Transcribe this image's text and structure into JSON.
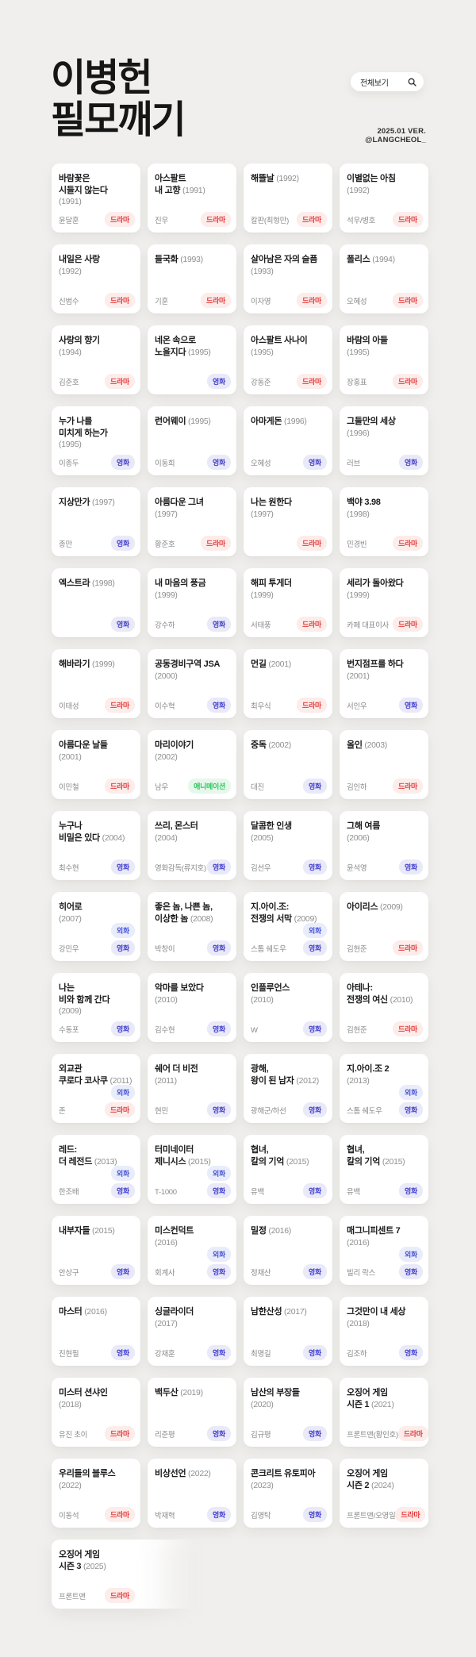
{
  "header": {
    "title": "이병헌\n필모깨기",
    "view_all_label": "전체보기",
    "version_line1": "2025.01 VER.",
    "version_line2": "@LANGCHEOL_"
  },
  "badge_colors": {
    "드라마": {
      "fg": "#E23C3C",
      "bg": "#FCECEA"
    },
    "영화": {
      "fg": "#4340CE",
      "bg": "#E9E9F8"
    },
    "외화": {
      "fg": "#4A57D9",
      "bg": "#E9EDFA"
    },
    "애니메이션": {
      "fg": "#2FC75F",
      "bg": "#E5F8EB"
    }
  },
  "cards": [
    {
      "title": "바람꽃은\n시들지 않는다\n",
      "year": "(1991)",
      "name": "윤달훈",
      "badges": [
        "드라마"
      ]
    },
    {
      "title": "아스팔트\n내 고향",
      "year": "(1991)",
      "name": "진우",
      "badges": [
        "드라마"
      ]
    },
    {
      "title": "해뜰날",
      "year": "(1992)",
      "name": "칼판(최형만)",
      "badges": [
        "드라마"
      ]
    },
    {
      "title": "이별없는 아침\n",
      "year": "(1992)",
      "name": "석우/병호",
      "badges": [
        "드라마"
      ]
    },
    {
      "title": "내일은 사랑\n",
      "year": "(1992)",
      "name": "신범수",
      "badges": [
        "드라마"
      ]
    },
    {
      "title": "들국화",
      "year": "(1993)",
      "name": "기훈",
      "badges": [
        "드라마"
      ]
    },
    {
      "title": "살아남은 자의 슬픔\n",
      "year": "(1993)",
      "name": "이자영",
      "badges": [
        "드라마"
      ]
    },
    {
      "title": "폴리스",
      "year": "(1994)",
      "name": "오혜성",
      "badges": [
        "드라마"
      ]
    },
    {
      "title": "사랑의 향기\n",
      "year": "(1994)",
      "name": "김준호",
      "badges": [
        "드라마"
      ]
    },
    {
      "title": "네온 속으로\n노을지다",
      "year": "(1995)",
      "name": "",
      "badges": [
        "영화"
      ]
    },
    {
      "title": "아스팔트 사나이\n",
      "year": "(1995)",
      "name": "강동준",
      "badges": [
        "드라마"
      ]
    },
    {
      "title": "바람의 아들\n",
      "year": "(1995)",
      "name": "장홍표",
      "badges": [
        "드라마"
      ]
    },
    {
      "title": "누가 나를\n미치게 하는가\n",
      "year": "(1995)",
      "name": "이종두",
      "badges": [
        "영화"
      ]
    },
    {
      "title": "런어웨이",
      "year": "(1995)",
      "name": "이동희",
      "badges": [
        "영화"
      ]
    },
    {
      "title": "아마게돈",
      "year": "(1996)",
      "name": "오혜성",
      "badges": [
        "영화"
      ]
    },
    {
      "title": "그들만의 세상\n",
      "year": "(1996)",
      "name": "러브",
      "badges": [
        "영화"
      ]
    },
    {
      "title": "지상만가",
      "year": "(1997)",
      "name": "종만",
      "badges": [
        "영화"
      ]
    },
    {
      "title": "아름다운 그녀\n",
      "year": "(1997)",
      "name": "황준호",
      "badges": [
        "드라마"
      ]
    },
    {
      "title": "나는 원한다\n",
      "year": "(1997)",
      "name": "",
      "badges": [
        "드라마"
      ]
    },
    {
      "title": "백야 3.98\n",
      "year": "(1998)",
      "name": "민경빈",
      "badges": [
        "드라마"
      ]
    },
    {
      "title": "엑스트라",
      "year": "(1998)",
      "name": "",
      "badges": [
        "영화"
      ]
    },
    {
      "title": "내 마음의 풍금\n",
      "year": "(1999)",
      "name": "강수하",
      "badges": [
        "영화"
      ]
    },
    {
      "title": "해피 투게더\n",
      "year": "(1999)",
      "name": "서태풍",
      "badges": [
        "드라마"
      ]
    },
    {
      "title": "세리가 돌아왔다\n",
      "year": "(1999)",
      "name": "카페 대표이사",
      "badges": [
        "드라마"
      ]
    },
    {
      "title": "해바라기",
      "year": "(1999)",
      "name": "이태성",
      "badges": [
        "드라마"
      ]
    },
    {
      "title": "공동경비구역 JSA\n",
      "year": "(2000)",
      "name": "이수혁",
      "badges": [
        "영화"
      ]
    },
    {
      "title": "먼길",
      "year": "(2001)",
      "name": "최우식",
      "badges": [
        "드라마"
      ]
    },
    {
      "title": "번지점프를 하다\n",
      "year": "(2001)",
      "name": "서인우",
      "badges": [
        "영화"
      ]
    },
    {
      "title": "아름다운 날들\n",
      "year": "(2001)",
      "name": "이민철",
      "badges": [
        "드라마"
      ]
    },
    {
      "title": "마리이야기\n",
      "year": "(2002)",
      "name": "남우",
      "badges": [
        "애니메이션"
      ]
    },
    {
      "title": "중독",
      "year": "(2002)",
      "name": "대진",
      "badges": [
        "영화"
      ]
    },
    {
      "title": "올인",
      "year": "(2003)",
      "name": "김인하",
      "badges": [
        "드라마"
      ]
    },
    {
      "title": "누구나\n비밀은 있다",
      "year": "(2004)",
      "name": "최수현",
      "badges": [
        "영화"
      ]
    },
    {
      "title": "쓰리, 몬스터\n",
      "year": "(2004)",
      "name": "영화감독(류지호)",
      "badges": [
        "영화"
      ]
    },
    {
      "title": "달콤한 인생\n",
      "year": "(2005)",
      "name": "김선우",
      "badges": [
        "영화"
      ]
    },
    {
      "title": "그해 여름\n",
      "year": "(2006)",
      "name": "윤석영",
      "badges": [
        "영화"
      ]
    },
    {
      "title": "히어로\n",
      "year": "(2007)",
      "name": "강민우",
      "badges": [
        "외화",
        "영화"
      ]
    },
    {
      "title": "좋은 놈, 나쁜 놈,\n이상한 놈",
      "year": "(2008)",
      "name": "박창이",
      "badges": [
        "영화"
      ]
    },
    {
      "title": "지.아이.조:\n전쟁의 서막",
      "year": "(2009)",
      "name": "스톰 쉐도우",
      "badges": [
        "외화",
        "영화"
      ]
    },
    {
      "title": "아이리스",
      "year": "(2009)",
      "name": "김현준",
      "badges": [
        "드라마"
      ]
    },
    {
      "title": "나는\n비와 함께 간다",
      "year": "(2009)",
      "name": "수동포",
      "badges": [
        "영화"
      ]
    },
    {
      "title": "악마를 보았다\n",
      "year": "(2010)",
      "name": "김수현",
      "badges": [
        "영화"
      ]
    },
    {
      "title": "인플루언스\n",
      "year": "(2010)",
      "name": "W",
      "badges": [
        "영화"
      ]
    },
    {
      "title": "아테나:\n전쟁의 여신",
      "year": "(2010)",
      "name": "김현준",
      "badges": [
        "드라마"
      ]
    },
    {
      "title": "외교관\n쿠로다 코사쿠",
      "year": "(2011)",
      "name": "존",
      "badges": [
        "외화",
        "드라마"
      ]
    },
    {
      "title": "쉐어 더 비전\n",
      "year": "(2011)",
      "name": "현민",
      "badges": [
        "영화"
      ]
    },
    {
      "title": "광해,\n왕이 된 남자",
      "year": "(2012)",
      "name": "광해군/하선",
      "badges": [
        "영화"
      ]
    },
    {
      "title": "지.아이.조 2\n",
      "year": "(2013)",
      "name": "스톰 쉐도우",
      "badges": [
        "외화",
        "영화"
      ]
    },
    {
      "title": "레드:\n더 레전드",
      "year": "(2013)",
      "name": "한조배",
      "badges": [
        "외화",
        "영화"
      ]
    },
    {
      "title": "터미네이터\n제니시스",
      "year": "(2015)",
      "name": "T-1000",
      "badges": [
        "외화",
        "영화"
      ]
    },
    {
      "title": "협녀,\n칼의 기억",
      "year": "(2015)",
      "name": "유백",
      "badges": [
        "영화"
      ]
    },
    {
      "title": "협녀,\n칼의 기억",
      "year": "(2015)",
      "name": "유백",
      "badges": [
        "영화"
      ]
    },
    {
      "title": "내부자들",
      "year": "(2015)",
      "name": "안상구",
      "badges": [
        "영화"
      ]
    },
    {
      "title": "미스컨덕트\n",
      "year": "(2016)",
      "name": "회계사",
      "badges": [
        "외화",
        "영화"
      ]
    },
    {
      "title": "밀정",
      "year": "(2016)",
      "name": "정채산",
      "badges": [
        "영화"
      ]
    },
    {
      "title": "매그니피센트 7\n",
      "year": "(2016)",
      "name": "빌리 락스",
      "badges": [
        "외화",
        "영화"
      ]
    },
    {
      "title": "마스터",
      "year": "(2016)",
      "name": "진현필",
      "badges": [
        "영화"
      ]
    },
    {
      "title": "싱글라이더\n",
      "year": "(2017)",
      "name": "강재훈",
      "badges": [
        "영화"
      ]
    },
    {
      "title": "남한산성",
      "year": "(2017)",
      "name": "최명길",
      "badges": [
        "영화"
      ]
    },
    {
      "title": "그것만이 내 세상\n",
      "year": "(2018)",
      "name": "김조하",
      "badges": [
        "영화"
      ]
    },
    {
      "title": "미스터 션샤인\n",
      "year": "(2018)",
      "name": "유진 초이",
      "badges": [
        "드라마"
      ]
    },
    {
      "title": "백두산",
      "year": "(2019)",
      "name": "리준평",
      "badges": [
        "영화"
      ]
    },
    {
      "title": "남산의 부장들\n",
      "year": "(2020)",
      "name": "김규평",
      "badges": [
        "영화"
      ]
    },
    {
      "title": "오징어 게임\n시즌 1",
      "year": "(2021)",
      "name": "프론트맨(황인호)",
      "badges": [
        "드라마"
      ]
    },
    {
      "title": "우리들의 블루스\n",
      "year": "(2022)",
      "name": "이동석",
      "badges": [
        "드라마"
      ]
    },
    {
      "title": "비상선언",
      "year": "(2022)",
      "name": "박재혁",
      "badges": [
        "영화"
      ]
    },
    {
      "title": "콘크리트 유토피아\n",
      "year": "(2023)",
      "name": "김영탁",
      "badges": [
        "영화"
      ]
    },
    {
      "title": "오징어 게임\n시즌 2",
      "year": "(2024)",
      "name": "프론트맨/오영일",
      "badges": [
        "드라마"
      ]
    },
    {
      "title": "오징어 게임\n시즌 3",
      "year": "(2025)",
      "name": "프론트맨",
      "badges": [
        "드라마"
      ],
      "faded": true
    }
  ]
}
